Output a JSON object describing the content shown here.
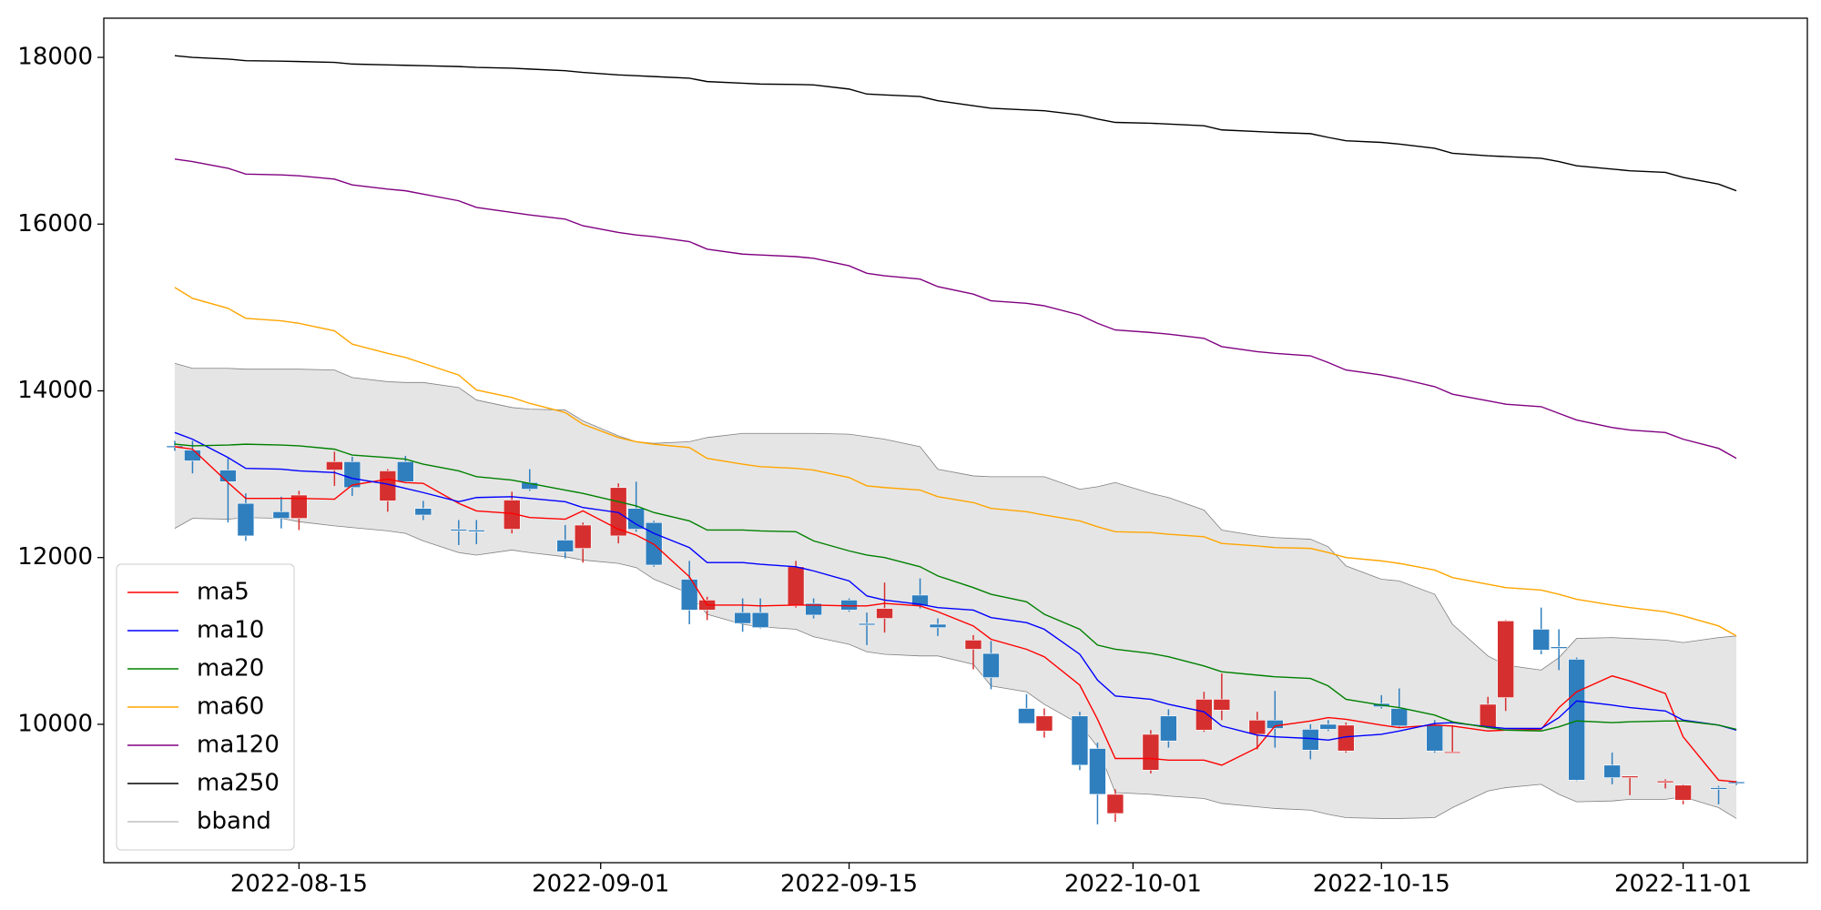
{
  "chart_data": {
    "type": "candlestick",
    "x": [
      "2022-08-08",
      "2022-08-09",
      "2022-08-11",
      "2022-08-12",
      "2022-08-14",
      "2022-08-15",
      "2022-08-17",
      "2022-08-18",
      "2022-08-20",
      "2022-08-21",
      "2022-08-22",
      "2022-08-24",
      "2022-08-25",
      "2022-08-27",
      "2022-08-28",
      "2022-08-30",
      "2022-08-31",
      "2022-09-02",
      "2022-09-03",
      "2022-09-04",
      "2022-09-06",
      "2022-09-07",
      "2022-09-09",
      "2022-09-10",
      "2022-09-12",
      "2022-09-13",
      "2022-09-15",
      "2022-09-16",
      "2022-09-17",
      "2022-09-19",
      "2022-09-20",
      "2022-09-22",
      "2022-09-23",
      "2022-09-25",
      "2022-09-26",
      "2022-09-28",
      "2022-09-29",
      "2022-09-30",
      "2022-10-02",
      "2022-10-03",
      "2022-10-05",
      "2022-10-06",
      "2022-10-08",
      "2022-10-09",
      "2022-10-11",
      "2022-10-12",
      "2022-10-13",
      "2022-10-15",
      "2022-10-16",
      "2022-10-18",
      "2022-10-19",
      "2022-10-21",
      "2022-10-22",
      "2022-10-24",
      "2022-10-25",
      "2022-10-26",
      "2022-10-28",
      "2022-10-29",
      "2022-10-31",
      "2022-11-01",
      "2022-11-03",
      "2022-11-04"
    ],
    "open": [
      13340,
      13290,
      13050,
      12650,
      12550,
      12470,
      13050,
      13150,
      12680,
      13150,
      12590,
      12340,
      12330,
      12340,
      12900,
      12210,
      12110,
      12260,
      12590,
      12420,
      11740,
      11370,
      11340,
      11340,
      11420,
      11450,
      11490,
      11210,
      11270,
      11550,
      11200,
      10900,
      10850,
      10190,
      9920,
      10100,
      9710,
      8930,
      9450,
      10100,
      9930,
      10170,
      9880,
      10050,
      9940,
      10000,
      9680,
      10250,
      10190,
      9990,
      9660,
      9960,
      10320,
      11140,
      10930,
      10780,
      9510,
      9360,
      9300,
      9090,
      9240,
      9310
    ],
    "high": [
      13400,
      13400,
      13190,
      12770,
      12730,
      12800,
      13270,
      13210,
      13060,
      13220,
      12680,
      12450,
      12450,
      12790,
      13060,
      12390,
      12420,
      12890,
      12910,
      12440,
      11960,
      11530,
      11510,
      11510,
      11960,
      11510,
      11510,
      11340,
      11700,
      11750,
      11270,
      11070,
      11000,
      10360,
      10190,
      10150,
      9780,
      9220,
      9930,
      10180,
      10390,
      10610,
      10150,
      10400,
      10000,
      10050,
      10020,
      10350,
      10430,
      10050,
      9990,
      10330,
      11250,
      11400,
      11140,
      10800,
      9660,
      9380,
      9340,
      9280,
      9260,
      9320
    ],
    "low": [
      13280,
      13010,
      12420,
      12200,
      12350,
      12330,
      12860,
      12740,
      12550,
      12890,
      12450,
      12150,
      12160,
      12290,
      12800,
      11990,
      11940,
      12170,
      12310,
      11890,
      11200,
      11250,
      11110,
      11150,
      11400,
      11270,
      11350,
      10950,
      11100,
      11390,
      11060,
      10660,
      10420,
      10010,
      9840,
      9450,
      8800,
      8830,
      9410,
      9720,
      9910,
      10050,
      9700,
      9720,
      9580,
      9920,
      9660,
      10190,
      9960,
      9660,
      9660,
      9950,
      10160,
      10840,
      10650,
      9320,
      9280,
      9150,
      9230,
      9040,
      9040,
      9270
    ],
    "close": [
      13320,
      13160,
      12910,
      12260,
      12470,
      12750,
      13150,
      12840,
      13040,
      12910,
      12510,
      12320,
      12310,
      12690,
      12820,
      12070,
      12390,
      12840,
      12340,
      11910,
      11370,
      11490,
      11210,
      11160,
      11890,
      11310,
      11370,
      11190,
      11390,
      11420,
      11160,
      11010,
      10560,
      10010,
      10100,
      9510,
      9160,
      9160,
      9880,
      9800,
      10300,
      10300,
      10050,
      9950,
      9690,
      9940,
      9990,
      10210,
      9980,
      9680,
      9670,
      10240,
      11240,
      10890,
      10910,
      9330,
      9360,
      9380,
      9320,
      9270,
      9220,
      9290
    ],
    "up_color": "#d62f2f",
    "down_color": "#2f7fbf",
    "series": [
      {
        "name": "ma5",
        "color": "#ff0000",
        "values": [
          13330,
          13300,
          12900,
          12710,
          12710,
          12710,
          12700,
          12870,
          12940,
          12900,
          12890,
          12650,
          12560,
          12530,
          12480,
          12460,
          12560,
          12340,
          12270,
          12160,
          11770,
          11430,
          11430,
          11420,
          11430,
          11430,
          11420,
          11420,
          11450,
          11420,
          11350,
          11180,
          11020,
          10900,
          10810,
          10470,
          10060,
          9590,
          9590,
          9570,
          9570,
          9510,
          9720,
          9980,
          10040,
          10080,
          10060,
          9990,
          9960,
          9990,
          9980,
          9920,
          9930,
          9940,
          10200,
          10390,
          10580,
          10520,
          10370,
          9850,
          9330,
          9310
        ]
      },
      {
        "name": "ma10",
        "color": "#0000ff",
        "values": [
          13500,
          13420,
          13200,
          13070,
          13060,
          13040,
          13020,
          12950,
          12880,
          12830,
          12780,
          12670,
          12720,
          12730,
          12710,
          12670,
          12600,
          12540,
          12400,
          12290,
          12120,
          11940,
          11940,
          11920,
          11890,
          11840,
          11720,
          11540,
          11490,
          11440,
          11400,
          11370,
          11280,
          11220,
          11140,
          10840,
          10530,
          10340,
          10300,
          10240,
          10150,
          9980,
          9870,
          9850,
          9830,
          9810,
          9850,
          9880,
          9920,
          10010,
          10020,
          9970,
          9950,
          9950,
          10080,
          10280,
          10230,
          10200,
          10160,
          10050,
          9990,
          9930
        ]
      },
      {
        "name": "ma20",
        "color": "#008000",
        "values": [
          13360,
          13340,
          13350,
          13360,
          13350,
          13340,
          13300,
          13230,
          13200,
          13180,
          13120,
          13040,
          12970,
          12930,
          12890,
          12810,
          12770,
          12670,
          12620,
          12540,
          12440,
          12330,
          12330,
          12320,
          12310,
          12200,
          12080,
          12030,
          12000,
          11890,
          11780,
          11640,
          11560,
          11470,
          11320,
          11140,
          10950,
          10900,
          10850,
          10810,
          10700,
          10630,
          10590,
          10570,
          10550,
          10460,
          10300,
          10230,
          10200,
          10110,
          10030,
          9960,
          9930,
          9920,
          9970,
          10040,
          10020,
          10030,
          10040,
          10040,
          9990,
          9940
        ]
      },
      {
        "name": "ma60",
        "color": "#ffa500",
        "values": [
          15240,
          15110,
          14990,
          14870,
          14840,
          14810,
          14720,
          14560,
          14450,
          14400,
          14330,
          14190,
          14010,
          13920,
          13850,
          13740,
          13600,
          13440,
          13390,
          13360,
          13320,
          13190,
          13120,
          13090,
          13070,
          13050,
          12960,
          12860,
          12840,
          12810,
          12730,
          12660,
          12590,
          12550,
          12510,
          12440,
          12370,
          12310,
          12300,
          12280,
          12250,
          12170,
          12140,
          12120,
          12110,
          12060,
          12000,
          11960,
          11930,
          11850,
          11760,
          11680,
          11640,
          11610,
          11560,
          11500,
          11430,
          11400,
          11350,
          11300,
          11180,
          11060
        ]
      },
      {
        "name": "ma120",
        "color": "#800080",
        "values": [
          16780,
          16750,
          16670,
          16600,
          16590,
          16580,
          16540,
          16470,
          16420,
          16400,
          16360,
          16280,
          16200,
          16140,
          16110,
          16060,
          15980,
          15900,
          15870,
          15850,
          15790,
          15700,
          15640,
          15630,
          15610,
          15590,
          15500,
          15410,
          15380,
          15340,
          15250,
          15160,
          15080,
          15050,
          15020,
          14910,
          14810,
          14730,
          14700,
          14680,
          14630,
          14530,
          14470,
          14450,
          14420,
          14340,
          14250,
          14190,
          14150,
          14050,
          13960,
          13880,
          13840,
          13810,
          13730,
          13650,
          13560,
          13530,
          13500,
          13420,
          13310,
          13190
        ]
      },
      {
        "name": "ma250",
        "color": "#000000",
        "values": [
          18020,
          18000,
          17980,
          17960,
          17955,
          17950,
          17940,
          17920,
          17910,
          17905,
          17900,
          17890,
          17880,
          17870,
          17860,
          17840,
          17820,
          17790,
          17780,
          17770,
          17750,
          17710,
          17690,
          17680,
          17675,
          17670,
          17620,
          17560,
          17550,
          17530,
          17480,
          17420,
          17390,
          17370,
          17360,
          17310,
          17260,
          17220,
          17210,
          17200,
          17180,
          17130,
          17110,
          17100,
          17085,
          17040,
          17000,
          16980,
          16960,
          16910,
          16850,
          16820,
          16810,
          16790,
          16750,
          16700,
          16660,
          16640,
          16620,
          16560,
          16480,
          16400
        ]
      }
    ],
    "band": {
      "name": "bband",
      "color": "#808080",
      "fill": "#e5e5e5",
      "upper": [
        14330,
        14270,
        14270,
        14260,
        14260,
        14260,
        14250,
        14160,
        14110,
        14100,
        14100,
        14040,
        13890,
        13800,
        13780,
        13770,
        13640,
        13460,
        13390,
        13370,
        13390,
        13440,
        13490,
        13490,
        13490,
        13490,
        13480,
        13450,
        13420,
        13330,
        13060,
        12980,
        12970,
        12970,
        12970,
        12820,
        12850,
        12900,
        12770,
        12720,
        12570,
        12330,
        12260,
        12240,
        12220,
        12130,
        11900,
        11740,
        11720,
        11560,
        11200,
        10820,
        10710,
        10650,
        10800,
        11030,
        11040,
        11030,
        11010,
        10980,
        11040,
        11060
      ],
      "lower": [
        12350,
        12470,
        12460,
        12480,
        12470,
        12430,
        12380,
        12360,
        12320,
        12290,
        12200,
        12060,
        12030,
        12090,
        12060,
        12010,
        11970,
        11930,
        11880,
        11740,
        11570,
        11320,
        11200,
        11170,
        11140,
        11050,
        10960,
        10870,
        10840,
        10820,
        10820,
        10720,
        10460,
        10390,
        10240,
        10000,
        9730,
        9180,
        9160,
        9140,
        9110,
        9050,
        9010,
        8990,
        8970,
        8920,
        8880,
        8870,
        8870,
        8880,
        9000,
        9200,
        9240,
        9280,
        9160,
        9070,
        9080,
        9100,
        9100,
        9130,
        9000,
        8870
      ]
    },
    "xlim": [
      "2022-08-04",
      "2022-11-08"
    ],
    "xticks": [
      "2022-08-15",
      "2022-09-01",
      "2022-09-15",
      "2022-10-01",
      "2022-10-15",
      "2022-11-01"
    ],
    "ylim": [
      8340,
      18470
    ],
    "yticks": [
      10000,
      12000,
      14000,
      16000,
      18000
    ],
    "legend": "lower left"
  }
}
